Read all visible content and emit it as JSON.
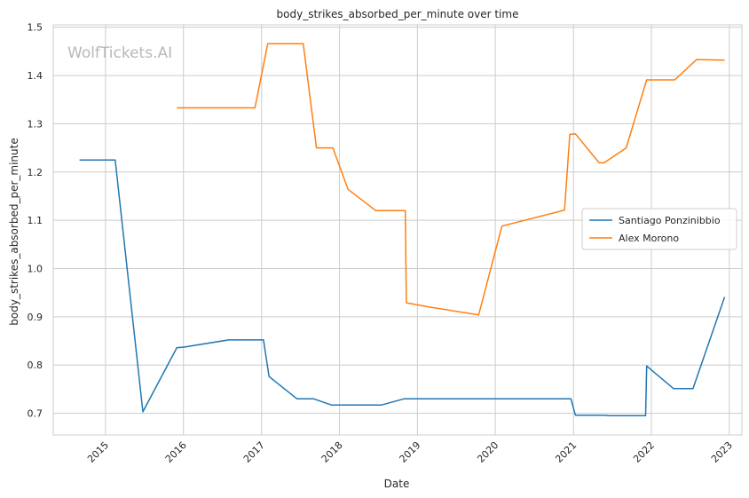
{
  "chart_data": {
    "type": "line",
    "title": "body_strikes_absorbed_per_minute over time",
    "xlabel": "Date",
    "ylabel": "body_strikes_absorbed_per_minute",
    "watermark": "WolfTickets.AI",
    "xlim": [
      "2014-05-01",
      "2023-03-01"
    ],
    "ylim": [
      0.655,
      1.505
    ],
    "x_ticks": [
      "2015-01-01",
      "2016-01-01",
      "2017-01-01",
      "2018-01-01",
      "2019-01-01",
      "2020-01-01",
      "2021-01-01",
      "2022-01-01",
      "2023-01-01"
    ],
    "x_tick_labels": [
      "2015",
      "2016",
      "2017",
      "2018",
      "2019",
      "2020",
      "2021",
      "2022",
      "2023"
    ],
    "y_ticks": [
      0.7,
      0.8,
      0.9,
      1.0,
      1.1,
      1.2,
      1.3,
      1.4,
      1.5
    ],
    "y_tick_labels": [
      "0.7",
      "0.8",
      "0.9",
      "1.0",
      "1.1",
      "1.2",
      "1.3",
      "1.4",
      "1.5"
    ],
    "grid": true,
    "legend_position": "center-right",
    "series": [
      {
        "name": "Santiago Ponzinibbio",
        "color": "#1f77b4",
        "points": [
          [
            "2014-09-01",
            1.225
          ],
          [
            "2015-02-15",
            1.225
          ],
          [
            "2015-06-25",
            0.703
          ],
          [
            "2015-12-01",
            0.836
          ],
          [
            "2016-01-01",
            0.837
          ],
          [
            "2016-07-30",
            0.852
          ],
          [
            "2017-01-10",
            0.852
          ],
          [
            "2017-02-05",
            0.776
          ],
          [
            "2017-06-15",
            0.73
          ],
          [
            "2017-09-01",
            0.73
          ],
          [
            "2017-11-25",
            0.717
          ],
          [
            "2018-07-15",
            0.717
          ],
          [
            "2018-11-01",
            0.73
          ],
          [
            "2020-12-20",
            0.73
          ],
          [
            "2021-01-10",
            0.696
          ],
          [
            "2021-05-30",
            0.696
          ],
          [
            "2021-06-15",
            0.695
          ],
          [
            "2021-12-05",
            0.695
          ],
          [
            "2021-12-10",
            0.798
          ],
          [
            "2022-04-15",
            0.751
          ],
          [
            "2022-07-15",
            0.751
          ],
          [
            "2022-12-10",
            0.941
          ]
        ]
      },
      {
        "name": "Alex Morono",
        "color": "#ff7f0e",
        "points": [
          [
            "2015-12-01",
            1.333
          ],
          [
            "2016-12-01",
            1.333
          ],
          [
            "2017-01-30",
            1.466
          ],
          [
            "2017-07-15",
            1.466
          ],
          [
            "2017-09-15",
            1.25
          ],
          [
            "2017-12-01",
            1.25
          ],
          [
            "2018-02-10",
            1.164
          ],
          [
            "2018-06-20",
            1.12
          ],
          [
            "2018-11-05",
            1.12
          ],
          [
            "2018-11-10",
            0.929
          ],
          [
            "2019-03-01",
            0.92
          ],
          [
            "2019-10-15",
            0.904
          ],
          [
            "2020-02-01",
            1.088
          ],
          [
            "2020-11-20",
            1.121
          ],
          [
            "2020-12-15",
            1.278
          ],
          [
            "2021-01-10",
            1.279
          ],
          [
            "2021-05-01",
            1.219
          ],
          [
            "2021-05-25",
            1.219
          ],
          [
            "2021-09-05",
            1.25
          ],
          [
            "2021-12-10",
            1.391
          ],
          [
            "2022-04-20",
            1.391
          ],
          [
            "2022-08-01",
            1.433
          ],
          [
            "2022-12-10",
            1.432
          ]
        ]
      }
    ]
  }
}
